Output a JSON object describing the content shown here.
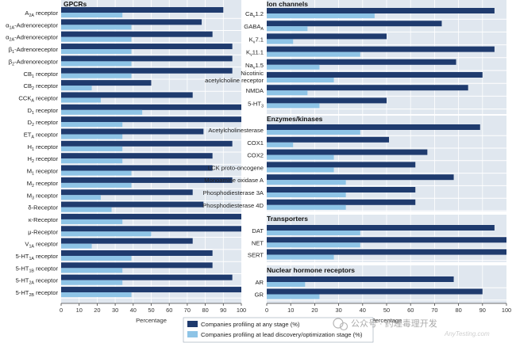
{
  "colors": {
    "panel_bg": "#e0e7ef",
    "any_stage": "#1f3b6e",
    "lead_stage": "#8ec4e6",
    "gridline": "#ffffff",
    "title": "#111111"
  },
  "chart_data": {
    "type": "bar",
    "orientation": "horizontal",
    "legend": {
      "position": "bottom-center",
      "entries": [
        {
          "key": "any",
          "label": "Companies profiling at any stage (%)"
        },
        {
          "key": "lead",
          "label": "Companies profiling at lead discovery/optimization stage (%)"
        }
      ]
    },
    "watermark": {
      "text": "公众号 · 药理毒理开发",
      "sub": "AnyTesting.com"
    },
    "panels": [
      {
        "id": "gpcrs",
        "title": "GPCRs",
        "xlabel": "Percentage",
        "xlim": [
          0,
          100
        ],
        "ticks": [
          "0",
          "10",
          "20",
          "30",
          "40",
          "50",
          "60",
          "70",
          "80",
          "90",
          "100"
        ],
        "categories": [
          {
            "main": "A",
            "sub": "2A",
            "rest": " receptor",
            "any": 90,
            "lead": 34
          },
          {
            "main": "α",
            "sub": "1A",
            "rest": "-Adrenoreceptor",
            "any": 78,
            "lead": 39
          },
          {
            "main": "α",
            "sub": "2A",
            "rest": "-Adrenoreceptor",
            "any": 84,
            "lead": 39
          },
          {
            "main": "β",
            "sub": "1",
            "rest": "-Adrenoreceptor",
            "any": 95,
            "lead": 39
          },
          {
            "main": "β",
            "sub": "2",
            "rest": "-Adrenoreceptor",
            "any": 95,
            "lead": 39
          },
          {
            "main": "CB",
            "sub": "1",
            "rest": " receptor",
            "any": 95,
            "lead": 39
          },
          {
            "main": "CB",
            "sub": "2",
            "rest": " receptor",
            "any": 50,
            "lead": 17
          },
          {
            "main": "CCK",
            "sub": "A",
            "rest": " receptor",
            "any": 73,
            "lead": 22
          },
          {
            "main": "D",
            "sub": "1",
            "rest": " receptor",
            "any": 100,
            "lead": 45
          },
          {
            "main": "D",
            "sub": "2",
            "rest": " receptor",
            "any": 100,
            "lead": 34
          },
          {
            "main": "ET",
            "sub": "A",
            "rest": " receptor",
            "any": 79,
            "lead": 34
          },
          {
            "main": "H",
            "sub": "1",
            "rest": " receptor",
            "any": 95,
            "lead": 34
          },
          {
            "main": "H",
            "sub": "2",
            "rest": " receptor",
            "any": 84,
            "lead": 34
          },
          {
            "main": "M",
            "sub": "1",
            "rest": " receptor",
            "any": 84,
            "lead": 39
          },
          {
            "main": "M",
            "sub": "2",
            "rest": " receptor",
            "any": 95,
            "lead": 39
          },
          {
            "main": "M",
            "sub": "3",
            "rest": " receptor",
            "any": 73,
            "lead": 22
          },
          {
            "main": "δ-Receptor",
            "sub": "",
            "rest": "",
            "any": 79,
            "lead": 28
          },
          {
            "main": "κ-Receptor",
            "sub": "",
            "rest": "",
            "any": 100,
            "lead": 34
          },
          {
            "main": "μ-Receptor",
            "sub": "",
            "rest": "",
            "any": 100,
            "lead": 50
          },
          {
            "main": "V",
            "sub": "1A",
            "rest": " receptor",
            "any": 73,
            "lead": 17
          },
          {
            "main": "5-HT",
            "sub": "1A",
            "rest": " receptor",
            "any": 84,
            "lead": 39
          },
          {
            "main": "5-HT",
            "sub": "1B",
            "rest": " receptor",
            "any": 84,
            "lead": 34
          },
          {
            "main": "5-HT",
            "sub": "2A",
            "rest": " receptor",
            "any": 95,
            "lead": 34
          },
          {
            "main": "5-HT",
            "sub": "2B",
            "rest": " receptor",
            "any": 100,
            "lead": 39
          }
        ]
      },
      {
        "id": "ion",
        "title": "Ion channels",
        "xlim": [
          0,
          100
        ],
        "categories": [
          {
            "main": "Ca",
            "sub": "v",
            "rest": "1.2",
            "any": 95,
            "lead": 45
          },
          {
            "main": "GABA",
            "sub": "A",
            "rest": "",
            "any": 73,
            "lead": 17
          },
          {
            "main": "K",
            "sub": "v",
            "rest": "7.1",
            "any": 50,
            "lead": 11
          },
          {
            "main": "K",
            "sub": "v",
            "rest": "11.1",
            "any": 95,
            "lead": 39
          },
          {
            "main": "Na",
            "sub": "v",
            "rest": "1.5",
            "any": 79,
            "lead": 22
          },
          {
            "main": "Nicotinic",
            "line2": "acetylcholine receptor",
            "sub": "",
            "rest": "",
            "any": 90,
            "lead": 28
          },
          {
            "main": "NMDA",
            "sub": "",
            "rest": "",
            "any": 84,
            "lead": 17
          },
          {
            "main": "5-HT",
            "sub": "3",
            "rest": "",
            "any": 50,
            "lead": 22
          }
        ]
      },
      {
        "id": "enz",
        "title": "Enzymes/kinases",
        "xlim": [
          0,
          100
        ],
        "categories": [
          {
            "main": "Acetylcholinesterase",
            "sub": "",
            "rest": "",
            "any": 89,
            "lead": 39
          },
          {
            "main": "COX1",
            "sub": "",
            "rest": "",
            "any": 51,
            "lead": 11
          },
          {
            "main": "COX2",
            "sub": "",
            "rest": "",
            "any": 67,
            "lead": 28
          },
          {
            "main": "LCK proto-oncogene",
            "sub": "",
            "rest": "",
            "any": 62,
            "lead": 28
          },
          {
            "main": "Monoamine oxidase A",
            "sub": "",
            "rest": "",
            "any": 78,
            "lead": 33
          },
          {
            "main": "Phosphodiesterase 3A",
            "sub": "",
            "rest": "",
            "any": 62,
            "lead": 33
          },
          {
            "main": "Phosphodiesterase 4D",
            "sub": "",
            "rest": "",
            "any": 62,
            "lead": 33
          }
        ]
      },
      {
        "id": "trans",
        "title": "Transporters",
        "xlim": [
          0,
          100
        ],
        "categories": [
          {
            "main": "DAT",
            "sub": "",
            "rest": "",
            "any": 95,
            "lead": 39
          },
          {
            "main": "NET",
            "sub": "",
            "rest": "",
            "any": 100,
            "lead": 39
          },
          {
            "main": "SERT",
            "sub": "",
            "rest": "",
            "any": 100,
            "lead": 28
          }
        ]
      },
      {
        "id": "nuc",
        "title": "Nuclear hormone receptors",
        "xlabel": "Percentage",
        "xlim": [
          0,
          100
        ],
        "ticks": [
          "0",
          "10",
          "20",
          "30",
          "40",
          "50",
          "60",
          "70",
          "80",
          "90",
          "100"
        ],
        "categories": [
          {
            "main": "AR",
            "sub": "",
            "rest": "",
            "any": 78,
            "lead": 16
          },
          {
            "main": "GR",
            "sub": "",
            "rest": "",
            "any": 90,
            "lead": 22
          }
        ]
      }
    ]
  }
}
